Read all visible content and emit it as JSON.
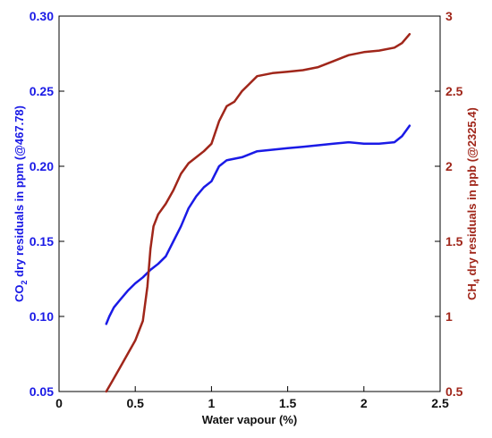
{
  "chart_data": {
    "type": "line",
    "x": {
      "label": "Water vapour (%)",
      "lim": [
        0,
        2.5
      ],
      "ticks": [
        0,
        0.5,
        1,
        1.5,
        2,
        2.5
      ],
      "tick_labels": [
        "0",
        "0.5",
        "1",
        "1.5",
        "2",
        "2.5"
      ]
    },
    "y_left": {
      "label_parts": [
        "CO",
        "2",
        " dry residuals in ppm (@467.78)"
      ],
      "lim": [
        0.05,
        0.3
      ],
      "ticks": [
        0.05,
        0.1,
        0.15,
        0.2,
        0.25,
        0.3
      ],
      "tick_labels": [
        "0.05",
        "0.10",
        "0.15",
        "0.20",
        "0.25",
        "0.30"
      ],
      "color": "#1a1ae6"
    },
    "y_right": {
      "label_parts": [
        "CH",
        "4",
        " dry residuals in ppb (@2325.4)"
      ],
      "lim": [
        0.5,
        3
      ],
      "ticks": [
        0.5,
        1,
        1.5,
        2,
        2.5,
        3
      ],
      "tick_labels": [
        "0.5",
        "1",
        "1.5",
        "2",
        "2.5",
        "3"
      ],
      "color": "#a0261a"
    },
    "series": [
      {
        "axis": "left",
        "color": "#1a1ae6",
        "points": [
          [
            0.31,
            0.095
          ],
          [
            0.33,
            0.1
          ],
          [
            0.36,
            0.106
          ],
          [
            0.4,
            0.111
          ],
          [
            0.45,
            0.117
          ],
          [
            0.5,
            0.122
          ],
          [
            0.55,
            0.126
          ],
          [
            0.6,
            0.131
          ],
          [
            0.65,
            0.135
          ],
          [
            0.7,
            0.14
          ],
          [
            0.75,
            0.15
          ],
          [
            0.8,
            0.16
          ],
          [
            0.85,
            0.172
          ],
          [
            0.9,
            0.18
          ],
          [
            0.95,
            0.186
          ],
          [
            1.0,
            0.19
          ],
          [
            1.05,
            0.2
          ],
          [
            1.1,
            0.204
          ],
          [
            1.2,
            0.206
          ],
          [
            1.3,
            0.21
          ],
          [
            1.4,
            0.211
          ],
          [
            1.5,
            0.212
          ],
          [
            1.6,
            0.213
          ],
          [
            1.7,
            0.214
          ],
          [
            1.8,
            0.215
          ],
          [
            1.9,
            0.216
          ],
          [
            2.0,
            0.215
          ],
          [
            2.1,
            0.215
          ],
          [
            2.2,
            0.216
          ],
          [
            2.25,
            0.22
          ],
          [
            2.3,
            0.227
          ]
        ]
      },
      {
        "axis": "right",
        "color": "#a0261a",
        "points": [
          [
            0.31,
            0.5
          ],
          [
            0.35,
            0.57
          ],
          [
            0.4,
            0.66
          ],
          [
            0.45,
            0.75
          ],
          [
            0.5,
            0.84
          ],
          [
            0.55,
            0.97
          ],
          [
            0.58,
            1.2
          ],
          [
            0.6,
            1.45
          ],
          [
            0.62,
            1.6
          ],
          [
            0.65,
            1.68
          ],
          [
            0.7,
            1.75
          ],
          [
            0.75,
            1.84
          ],
          [
            0.8,
            1.95
          ],
          [
            0.85,
            2.02
          ],
          [
            0.9,
            2.06
          ],
          [
            0.95,
            2.1
          ],
          [
            1.0,
            2.15
          ],
          [
            1.05,
            2.3
          ],
          [
            1.1,
            2.4
          ],
          [
            1.15,
            2.43
          ],
          [
            1.2,
            2.5
          ],
          [
            1.25,
            2.55
          ],
          [
            1.3,
            2.6
          ],
          [
            1.4,
            2.62
          ],
          [
            1.5,
            2.63
          ],
          [
            1.6,
            2.64
          ],
          [
            1.7,
            2.66
          ],
          [
            1.8,
            2.7
          ],
          [
            1.9,
            2.74
          ],
          [
            2.0,
            2.76
          ],
          [
            2.1,
            2.77
          ],
          [
            2.2,
            2.79
          ],
          [
            2.25,
            2.82
          ],
          [
            2.3,
            2.88
          ]
        ]
      }
    ],
    "grid": false,
    "legend": "none"
  }
}
